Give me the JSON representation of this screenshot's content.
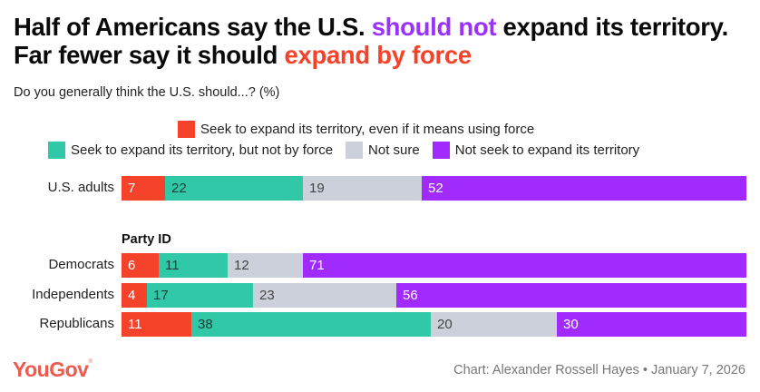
{
  "title": {
    "part1": "Half of Americans say the U.S. ",
    "highlight1": "should not",
    "part2": " expand its territory. Far fewer say it should ",
    "highlight2": "expand by force"
  },
  "colors": {
    "force": "#F5432B",
    "not_force": "#30C8A6",
    "not_sure": "#CCD0DA",
    "not_seek": "#A12BFF"
  },
  "footer": {
    "logo": "YouGov",
    "credit": "Chart: Alexander Rossell Hayes • January 7, 2026"
  },
  "chart_data": {
    "type": "bar",
    "orientation": "horizontal-stacked",
    "title": "Half of Americans say the U.S. should not expand its territory. Far fewer say it should expand by force",
    "subtitle": "Do you generally think the U.S. should...? (%)",
    "legend": [
      {
        "key": "force",
        "label": "Seek to expand its territory, even if it means using force"
      },
      {
        "key": "not_force",
        "label": "Seek to expand its territory, but not by force"
      },
      {
        "key": "not_sure",
        "label": "Not sure"
      },
      {
        "key": "not_seek",
        "label": "Not seek to expand its territory"
      }
    ],
    "legend_position": "top",
    "group_label": "Party ID",
    "categories": [
      "U.S. adults",
      "Democrats",
      "Independents",
      "Republicans"
    ],
    "series": [
      {
        "name": "Seek to expand its territory, even if it means using force",
        "key": "force",
        "values": [
          7,
          6,
          4,
          11
        ]
      },
      {
        "name": "Seek to expand its territory, but not by force",
        "key": "not_force",
        "values": [
          22,
          11,
          17,
          38
        ]
      },
      {
        "name": "Not sure",
        "key": "not_sure",
        "values": [
          19,
          12,
          23,
          20
        ]
      },
      {
        "name": "Not seek to expand its territory",
        "key": "not_seek",
        "values": [
          52,
          71,
          56,
          30
        ]
      }
    ],
    "xlim": [
      0,
      100
    ],
    "grid": false
  }
}
